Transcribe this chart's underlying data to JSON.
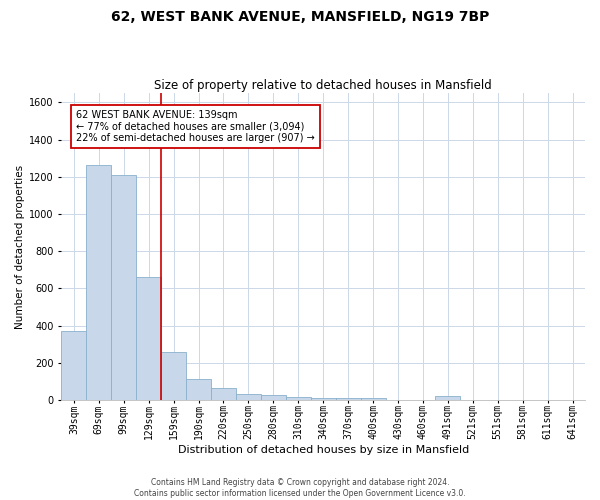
{
  "title": "62, WEST BANK AVENUE, MANSFIELD, NG19 7BP",
  "subtitle": "Size of property relative to detached houses in Mansfield",
  "xlabel": "Distribution of detached houses by size in Mansfield",
  "ylabel": "Number of detached properties",
  "bar_color": "#c8d8ea",
  "bar_edge_color": "#8ab0cc",
  "vline_color": "#cc0000",
  "vline_x": 3.5,
  "categories": [
    "39sqm",
    "69sqm",
    "99sqm",
    "129sqm",
    "159sqm",
    "190sqm",
    "220sqm",
    "250sqm",
    "280sqm",
    "310sqm",
    "340sqm",
    "370sqm",
    "400sqm",
    "430sqm",
    "460sqm",
    "491sqm",
    "521sqm",
    "551sqm",
    "581sqm",
    "611sqm",
    "641sqm"
  ],
  "values": [
    370,
    1265,
    1210,
    660,
    260,
    115,
    65,
    35,
    25,
    15,
    10,
    10,
    10,
    0,
    0,
    20,
    0,
    0,
    0,
    0,
    0
  ],
  "ylim": [
    0,
    1650
  ],
  "yticks": [
    0,
    200,
    400,
    600,
    800,
    1000,
    1200,
    1400,
    1600
  ],
  "annotation_line1": "62 WEST BANK AVENUE: 139sqm",
  "annotation_line2": "← 77% of detached houses are smaller (3,094)",
  "annotation_line3": "22% of semi-detached houses are larger (907) →",
  "footer_line1": "Contains HM Land Registry data © Crown copyright and database right 2024.",
  "footer_line2": "Contains public sector information licensed under the Open Government Licence v3.0.",
  "background_color": "#ffffff",
  "grid_color": "#ccd8e8",
  "box_edge_color": "#cc0000",
  "title_fontsize": 10,
  "subtitle_fontsize": 8.5,
  "ylabel_fontsize": 7.5,
  "xlabel_fontsize": 8,
  "tick_fontsize": 7,
  "annot_fontsize": 7,
  "footer_fontsize": 5.5
}
